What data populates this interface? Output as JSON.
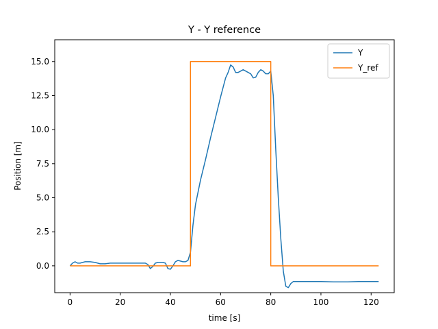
{
  "chart_data": {
    "type": "line",
    "title": "Y - Y reference",
    "xlabel": "time [s]",
    "ylabel": "Position [m]",
    "xlim": [
      -6.1,
      129.2
    ],
    "ylim": [
      -1.97,
      16.6
    ],
    "xticks": [
      0,
      20,
      40,
      60,
      80,
      100,
      120
    ],
    "xtick_labels": [
      "0",
      "20",
      "40",
      "60",
      "80",
      "100",
      "120"
    ],
    "yticks": [
      0.0,
      2.5,
      5.0,
      7.5,
      10.0,
      12.5,
      15.0
    ],
    "ytick_labels": [
      "0.0",
      "2.5",
      "5.0",
      "7.5",
      "10.0",
      "12.5",
      "15.0"
    ],
    "grid": false,
    "legend_position": "top-right",
    "series": [
      {
        "name": "Y",
        "color": "#1f77b4",
        "x": [
          0,
          1,
          2,
          3,
          4,
          6,
          8,
          10,
          12,
          14,
          16,
          20,
          24,
          28,
          30,
          31,
          32,
          33,
          34,
          35,
          36,
          37,
          38,
          39,
          40,
          41,
          42,
          43,
          44,
          45,
          46,
          47,
          48,
          49,
          50,
          52,
          54,
          56,
          58,
          60,
          62,
          63,
          64,
          65,
          66,
          67,
          68,
          69,
          70,
          71,
          72,
          73,
          74,
          75,
          76,
          77,
          78,
          79,
          80,
          81,
          82,
          83,
          84,
          85,
          86,
          87,
          88,
          89,
          90,
          92,
          95,
          100,
          105,
          110,
          115,
          120,
          123
        ],
        "y": [
          0.0,
          0.2,
          0.3,
          0.2,
          0.2,
          0.3,
          0.3,
          0.25,
          0.15,
          0.15,
          0.2,
          0.2,
          0.2,
          0.2,
          0.2,
          0.1,
          -0.2,
          -0.05,
          0.2,
          0.25,
          0.25,
          0.25,
          0.2,
          -0.2,
          -0.25,
          0.0,
          0.3,
          0.4,
          0.35,
          0.3,
          0.3,
          0.4,
          1.0,
          3.0,
          4.5,
          6.3,
          7.8,
          9.4,
          10.9,
          12.4,
          13.8,
          14.2,
          14.75,
          14.6,
          14.2,
          14.2,
          14.3,
          14.4,
          14.3,
          14.2,
          14.1,
          13.8,
          13.85,
          14.2,
          14.4,
          14.3,
          14.1,
          14.1,
          14.3,
          12.5,
          8.5,
          5.0,
          2.0,
          -0.4,
          -1.5,
          -1.6,
          -1.3,
          -1.15,
          -1.15,
          -1.15,
          -1.15,
          -1.15,
          -1.18,
          -1.18,
          -1.15,
          -1.15,
          -1.15
        ]
      },
      {
        "name": "Y_ref",
        "color": "#ff7f0e",
        "x": [
          0,
          48,
          48,
          80,
          80,
          123
        ],
        "y": [
          0,
          0,
          15,
          15,
          0,
          0
        ]
      }
    ]
  }
}
